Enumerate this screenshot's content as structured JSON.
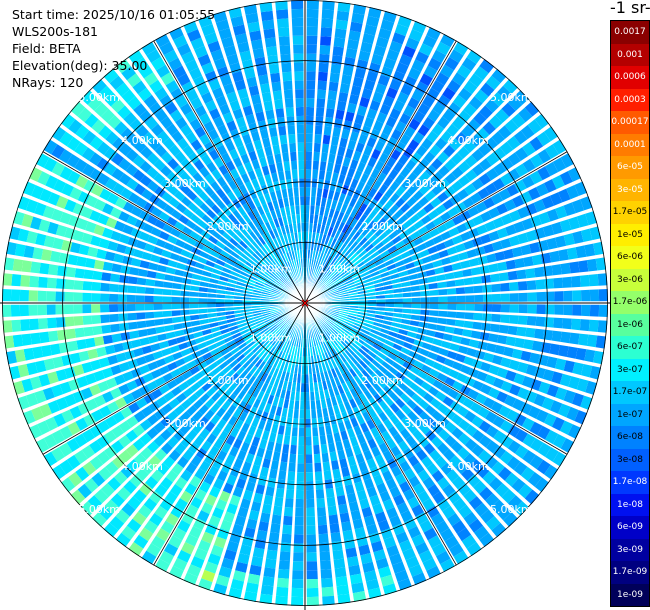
{
  "header": {
    "start_time": "Start time: 2025/10/16 01:05:55",
    "instrument": "WLS200s-181",
    "field": "Field: BETA",
    "elevation": "Elevation(deg): 35.00",
    "nrays": "NRays: 120"
  },
  "colorbar": {
    "title_visible": "-1 sr-",
    "levels": [
      "0.0017",
      "0.001",
      "0.0006",
      "0.0003",
      "0.00017",
      "0.0001",
      "6e-05",
      "3e-05",
      "1.7e-05",
      "1e-05",
      "6e-06",
      "3e-06",
      "1.7e-06",
      "1e-06",
      "6e-07",
      "3e-07",
      "1.7e-07",
      "1e-07",
      "6e-08",
      "3e-08",
      "1.7e-08",
      "1e-08",
      "6e-09",
      "3e-09",
      "1.7e-09",
      "1e-09"
    ],
    "colors": [
      "#8a0000",
      "#b40000",
      "#e10000",
      "#ff1e00",
      "#ff5a00",
      "#ff7c00",
      "#ff9a00",
      "#ffb400",
      "#ffd200",
      "#ffee00",
      "#f2ff1a",
      "#c8ff3a",
      "#94ff6a",
      "#58ff9e",
      "#2cffd2",
      "#00f0ff",
      "#00c8ff",
      "#00a6ff",
      "#0082ff",
      "#0060ff",
      "#0038ff",
      "#0010f0",
      "#0000c8",
      "#0000a0",
      "#000080",
      "#00005a"
    ],
    "text_colors": [
      "#ffffff",
      "#ffffff",
      "#ffffff",
      "#ffffff",
      "#ffffff",
      "#ffffff",
      "#ffffff",
      "#ffffff",
      "#000000",
      "#000000",
      "#000000",
      "#000000",
      "#000000",
      "#000000",
      "#000000",
      "#000000",
      "#000000",
      "#000000",
      "#000000",
      "#000000",
      "#ffffff",
      "#ffffff",
      "#ffffff",
      "#ffffff",
      "#ffffff",
      "#ffffff"
    ]
  },
  "chart_data": {
    "type": "heatmap",
    "subtype": "polar PPI scan",
    "field": "BETA",
    "nrays": 120,
    "range_rings_km": [
      1,
      2,
      3,
      4,
      5
    ],
    "ring_labels": [
      "1.00km",
      "2.00km",
      "3.00km",
      "4.00km",
      "5.00km"
    ],
    "max_range_km": 5,
    "azimuth_lines_deg": [
      0,
      30,
      60,
      90,
      120,
      150,
      180,
      210,
      240,
      270,
      300,
      330
    ],
    "dominant_range": [
      "1e-07",
      "6e-08"
    ],
    "features": [
      "weaker returns (~3e-08) near 0-30 deg azimuth",
      "stronger returns (~1e-06 to 3e-06) in an arc at west and south-west, 3.5-5 km range"
    ]
  }
}
